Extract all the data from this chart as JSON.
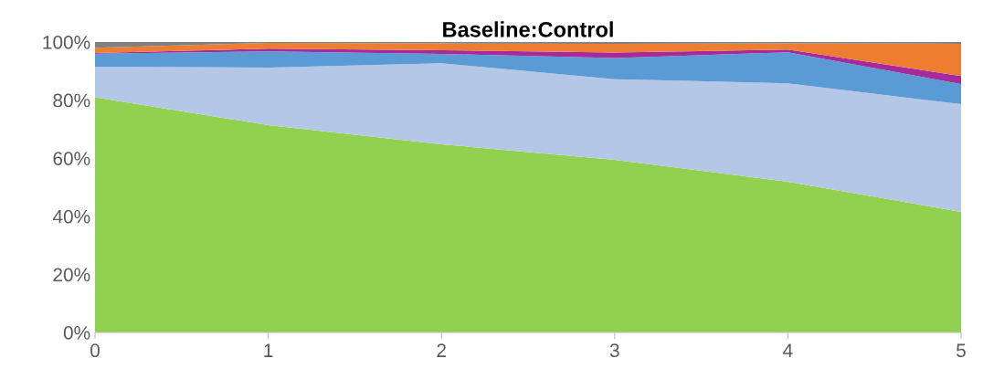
{
  "chart_data": {
    "type": "area",
    "stacked": true,
    "title": "Baseline:Control",
    "x": [
      0,
      1,
      2,
      3,
      4,
      5
    ],
    "series": [
      {
        "color": "#92d050",
        "values": [
          81,
          71.4,
          64.8,
          59.4,
          51.9,
          41.5
        ]
      },
      {
        "color": "#b4c7e7",
        "values": [
          10.5,
          19.8,
          27.9,
          27.8,
          33.9,
          37.1
        ]
      },
      {
        "color": "#5b9bd5",
        "values": [
          4.5,
          5.6,
          3.2,
          7.3,
          10.7,
          6.9
        ]
      },
      {
        "color": "#a52a9b",
        "values": [
          0.2,
          0.9,
          1.3,
          1.9,
          0.9,
          2.8
        ]
      },
      {
        "color": "#ed7d31",
        "values": [
          1.8,
          2.0,
          2.3,
          3.0,
          2.1,
          11.1
        ]
      },
      {
        "color": "#808080",
        "values": [
          2,
          0.3,
          0.5,
          0.6,
          0.5,
          0.6
        ]
      }
    ],
    "xlim": [
      0,
      5
    ],
    "xticks": [
      0,
      1,
      2,
      3,
      4,
      5
    ],
    "ylim": [
      0,
      100
    ],
    "yticks": [
      {
        "value": 0,
        "label": "0%"
      },
      {
        "value": 20,
        "label": "20%"
      },
      {
        "value": 40,
        "label": "40%"
      },
      {
        "value": 60,
        "label": "60%"
      },
      {
        "value": 80,
        "label": "80%"
      },
      {
        "value": 100,
        "label": "100%"
      }
    ],
    "grid": false,
    "legend": false
  }
}
